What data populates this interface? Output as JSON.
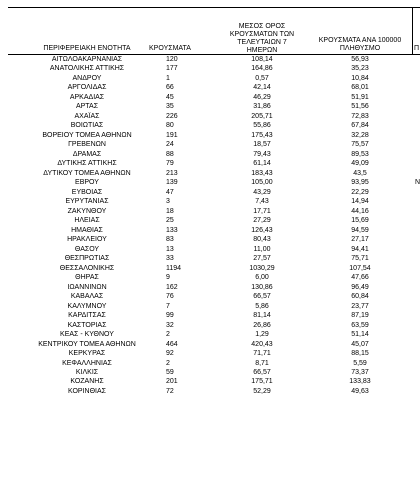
{
  "headers": {
    "region": "ΠΕΡΙΦΕΡΕΙΑΚΗ ΕΝΟΤΗΤΑ",
    "cases": "ΚΡΟΥΣΜΑΤΑ",
    "avg_line1": "ΜΕΣΟΣ ΟΡΟΣ",
    "avg_line2": "ΚΡΟΥΣΜΑΤΩΝ ΤΩΝ",
    "avg_line3": "ΤΕΛΕΥΤΑΙΩΝ 7 ΗΜΕΡΩΝ",
    "per_line1": "ΚΡΟΥΣΜΑΤΑ ΑΝΑ 100000",
    "per_line2": "ΠΛΗΘΥΣΜΟ",
    "clipped": "Π"
  },
  "rows": [
    {
      "region": "ΑΙΤΩΛΟΑΚΑΡΝΑΝΙΑΣ",
      "cases": "120",
      "avg": "108,14",
      "per": "56,93",
      "extra": ""
    },
    {
      "region": "ΑΝΑΤΟΛΙΚΗΣ ΑΤΤΙΚΗΣ",
      "cases": "177",
      "avg": "164,86",
      "per": "35,23",
      "extra": ""
    },
    {
      "region": "ΑΝΔΡΟΥ",
      "cases": "1",
      "avg": "0,57",
      "per": "10,84",
      "extra": ""
    },
    {
      "region": "ΑΡΓΟΛΙΔΑΣ",
      "cases": "66",
      "avg": "42,14",
      "per": "68,01",
      "extra": ""
    },
    {
      "region": "ΑΡΚΑΔΙΑΣ",
      "cases": "45",
      "avg": "46,29",
      "per": "51,91",
      "extra": ""
    },
    {
      "region": "ΑΡΤΑΣ",
      "cases": "35",
      "avg": "31,86",
      "per": "51,56",
      "extra": ""
    },
    {
      "region": "ΑΧΑΪΑΣ",
      "cases": "226",
      "avg": "205,71",
      "per": "72,83",
      "extra": ""
    },
    {
      "region": "ΒΟΙΩΤΙΑΣ",
      "cases": "80",
      "avg": "55,86",
      "per": "67,84",
      "extra": ""
    },
    {
      "region": "ΒΟΡΕΙΟΥ ΤΟΜΕΑ ΑΘΗΝΩΝ",
      "cases": "191",
      "avg": "175,43",
      "per": "32,28",
      "extra": ""
    },
    {
      "region": "ΓΡΕΒΕΝΩΝ",
      "cases": "24",
      "avg": "18,57",
      "per": "75,57",
      "extra": ""
    },
    {
      "region": "ΔΡΑΜΑΣ",
      "cases": "88",
      "avg": "79,43",
      "per": "89,53",
      "extra": ""
    },
    {
      "region": "ΔΥΤΙΚΗΣ ΑΤΤΙΚΗΣ",
      "cases": "79",
      "avg": "61,14",
      "per": "49,09",
      "extra": ""
    },
    {
      "region": "ΔΥΤΙΚΟΥ ΤΟΜΕΑ ΑΘΗΝΩΝ",
      "cases": "213",
      "avg": "183,43",
      "per": "43,5",
      "extra": ""
    },
    {
      "region": "ΕΒΡΟΥ",
      "cases": "139",
      "avg": "105,00",
      "per": "93,95",
      "extra": "N"
    },
    {
      "region": "ΕΥΒΟΙΑΣ",
      "cases": "47",
      "avg": "43,29",
      "per": "22,29",
      "extra": ""
    },
    {
      "region": "ΕΥΡΥΤΑΝΙΑΣ",
      "cases": "3",
      "avg": "7,43",
      "per": "14,94",
      "extra": ""
    },
    {
      "region": "ΖΑΚΥΝΘΟΥ",
      "cases": "18",
      "avg": "17,71",
      "per": "44,16",
      "extra": ""
    },
    {
      "region": "ΗΛΕΙΑΣ",
      "cases": "25",
      "avg": "27,29",
      "per": "15,69",
      "extra": ""
    },
    {
      "region": "ΗΜΑΘΙΑΣ",
      "cases": "133",
      "avg": "126,43",
      "per": "94,59",
      "extra": ""
    },
    {
      "region": "ΗΡΑΚΛΕΙΟΥ",
      "cases": "83",
      "avg": "80,43",
      "per": "27,17",
      "extra": ""
    },
    {
      "region": "ΘΑΣΟΥ",
      "cases": "13",
      "avg": "11,00",
      "per": "94,41",
      "extra": ""
    },
    {
      "region": "ΘΕΣΠΡΩΤΙΑΣ",
      "cases": "33",
      "avg": "27,57",
      "per": "75,71",
      "extra": ""
    },
    {
      "region": "ΘΕΣΣΑΛΟΝΙΚΗΣ",
      "cases": "1194",
      "avg": "1030,29",
      "per": "107,54",
      "extra": ""
    },
    {
      "region": "ΘΗΡΑΣ",
      "cases": "9",
      "avg": "6,00",
      "per": "47,66",
      "extra": ""
    },
    {
      "region": "ΙΩΑΝΝΙΝΩΝ",
      "cases": "162",
      "avg": "130,86",
      "per": "96,49",
      "extra": ""
    },
    {
      "region": "ΚΑΒΑΛΑΣ",
      "cases": "76",
      "avg": "66,57",
      "per": "60,84",
      "extra": ""
    },
    {
      "region": "ΚΑΛΥΜΝΟΥ",
      "cases": "7",
      "avg": "5,86",
      "per": "23,77",
      "extra": ""
    },
    {
      "region": "ΚΑΡΔΙΤΣΑΣ",
      "cases": "99",
      "avg": "81,14",
      "per": "87,19",
      "extra": ""
    },
    {
      "region": "ΚΑΣΤΟΡΙΑΣ",
      "cases": "32",
      "avg": "26,86",
      "per": "63,59",
      "extra": ""
    },
    {
      "region": "ΚΕΑΣ - ΚΥΘΝΟΥ",
      "cases": "2",
      "avg": "1,29",
      "per": "51,14",
      "extra": ""
    },
    {
      "region": "ΚΕΝΤΡΙΚΟΥ ΤΟΜΕΑ ΑΘΗΝΩΝ",
      "cases": "464",
      "avg": "420,43",
      "per": "45,07",
      "extra": ""
    },
    {
      "region": "ΚΕΡΚΥΡΑΣ",
      "cases": "92",
      "avg": "71,71",
      "per": "88,15",
      "extra": ""
    },
    {
      "region": "ΚΕΦΑΛΛΗΝΙΑΣ",
      "cases": "2",
      "avg": "8,71",
      "per": "5,59",
      "extra": ""
    },
    {
      "region": "ΚΙΛΚΙΣ",
      "cases": "59",
      "avg": "66,57",
      "per": "73,37",
      "extra": ""
    },
    {
      "region": "ΚΟΖΑΝΗΣ",
      "cases": "201",
      "avg": "175,71",
      "per": "133,83",
      "extra": ""
    },
    {
      "region": "ΚΟΡΙΝΘΙΑΣ",
      "cases": "72",
      "avg": "52,29",
      "per": "49,63",
      "extra": ""
    }
  ]
}
